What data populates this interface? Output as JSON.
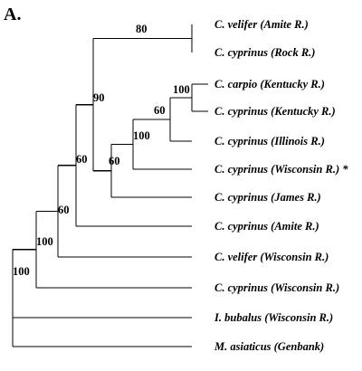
{
  "figure": {
    "panel_label": "A."
  },
  "tree": {
    "taxa": [
      {
        "id": "t1",
        "label": "C. velifer (Amite R.)"
      },
      {
        "id": "t2",
        "label": "C. cyprinus (Rock R.)"
      },
      {
        "id": "t3",
        "label": "C. carpio (Kentucky R.)"
      },
      {
        "id": "t4",
        "label": "C. cyprinus (Kentucky R.)"
      },
      {
        "id": "t5",
        "label": "C. cyprinus (Illinois R.)"
      },
      {
        "id": "t6",
        "label": "C. cyprinus (Wisconsin R.) *"
      },
      {
        "id": "t7",
        "label": "C. cyprinus (James R.)"
      },
      {
        "id": "t8",
        "label": "C. cyprinus (Amite R.)"
      },
      {
        "id": "t9",
        "label": "C. velifer (Wisconsin R.)"
      },
      {
        "id": "t10",
        "label": "C. cyprinus (Wisconsin R.)"
      },
      {
        "id": "t11",
        "label": "I. bubalus (Wisconsin R.)"
      },
      {
        "id": "t12",
        "label": "M. asiaticus (Genbank)"
      }
    ],
    "bootstrap": [
      {
        "node": "n_root",
        "value": "100"
      },
      {
        "node": "n_a",
        "value": "100"
      },
      {
        "node": "n_b",
        "value": "60"
      },
      {
        "node": "n_c",
        "value": "60"
      },
      {
        "node": "n_d",
        "value": "90"
      },
      {
        "node": "n_velifer",
        "value": "80"
      },
      {
        "node": "n_e",
        "value": "60"
      },
      {
        "node": "n_f",
        "value": "100"
      },
      {
        "node": "n_g",
        "value": "60"
      },
      {
        "node": "n_h",
        "value": "100"
      }
    ]
  }
}
